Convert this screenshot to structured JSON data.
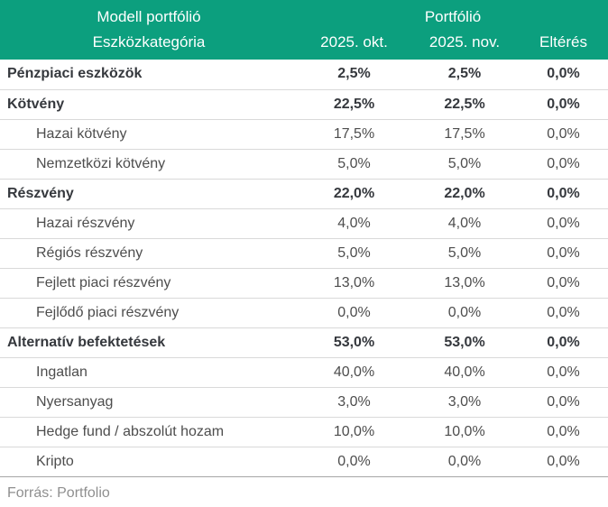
{
  "colors": {
    "header_bg": "#0c9f7e",
    "header_text": "#ffffff",
    "body_text": "#4d4d4d",
    "bold_text": "#35383d",
    "row_line": "#d9d9d9",
    "source_text": "#8f8f8f"
  },
  "chart_data": {
    "type": "table",
    "title": "Modell portfólió",
    "header_groups": {
      "left": "Modell portfólió",
      "right": "Portfólió"
    },
    "columns": [
      "Eszközkategória",
      "2025. okt.",
      "2025. nov.",
      "Eltérés"
    ],
    "rows": [
      {
        "label": "Pénzpiaci eszközök",
        "values": [
          "2,5%",
          "2,5%",
          "0,0%"
        ],
        "bold": true,
        "indent": false
      },
      {
        "label": "Kötvény",
        "values": [
          "22,5%",
          "22,5%",
          "0,0%"
        ],
        "bold": true,
        "indent": false
      },
      {
        "label": "Hazai kötvény",
        "values": [
          "17,5%",
          "17,5%",
          "0,0%"
        ],
        "bold": false,
        "indent": true
      },
      {
        "label": "Nemzetközi kötvény",
        "values": [
          "5,0%",
          "5,0%",
          "0,0%"
        ],
        "bold": false,
        "indent": true
      },
      {
        "label": "Részvény",
        "values": [
          "22,0%",
          "22,0%",
          "0,0%"
        ],
        "bold": true,
        "indent": false
      },
      {
        "label": "Hazai részvény",
        "values": [
          "4,0%",
          "4,0%",
          "0,0%"
        ],
        "bold": false,
        "indent": true
      },
      {
        "label": "Régiós részvény",
        "values": [
          "5,0%",
          "5,0%",
          "0,0%"
        ],
        "bold": false,
        "indent": true
      },
      {
        "label": "Fejlett piaci részvény",
        "values": [
          "13,0%",
          "13,0%",
          "0,0%"
        ],
        "bold": false,
        "indent": true
      },
      {
        "label": "Fejlődő piaci részvény",
        "values": [
          "0,0%",
          "0,0%",
          "0,0%"
        ],
        "bold": false,
        "indent": true
      },
      {
        "label": "Alternatív befektetések",
        "values": [
          "53,0%",
          "53,0%",
          "0,0%"
        ],
        "bold": true,
        "indent": false
      },
      {
        "label": "Ingatlan",
        "values": [
          "40,0%",
          "40,0%",
          "0,0%"
        ],
        "bold": false,
        "indent": true
      },
      {
        "label": "Nyersanyag",
        "values": [
          "3,0%",
          "3,0%",
          "0,0%"
        ],
        "bold": false,
        "indent": true
      },
      {
        "label": "Hedge fund / abszolút hozam",
        "values": [
          "10,0%",
          "10,0%",
          "0,0%"
        ],
        "bold": false,
        "indent": true
      },
      {
        "label": "Kripto",
        "values": [
          "0,0%",
          "0,0%",
          "0,0%"
        ],
        "bold": false,
        "indent": true
      }
    ],
    "source": "Forrás: Portfolio"
  }
}
